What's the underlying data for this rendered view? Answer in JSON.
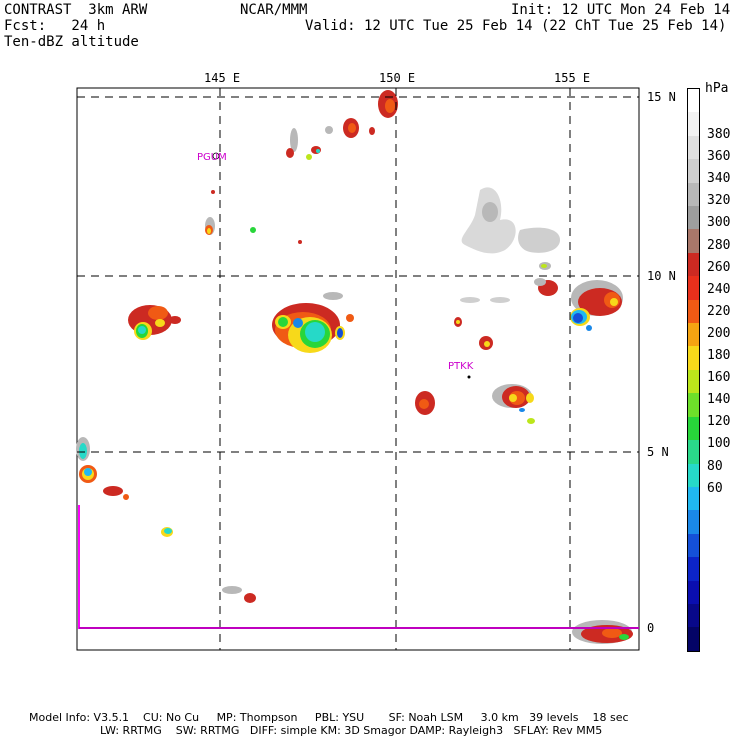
{
  "header": {
    "model": "CONTRAST  3km ARW",
    "org": "NCAR/MMM",
    "init": "Init: 12 UTC Mon 24 Feb 14",
    "fcst": "Fcst:   24 h",
    "valid": "Valid: 12 UTC Tue 25 Feb 14 (22 ChT Tue 25 Feb 14)",
    "field": "Ten-dBZ altitude"
  },
  "map": {
    "lon_labels": [
      "145 E",
      "150 E",
      "155 E"
    ],
    "lat_labels": [
      "15 N",
      "10 N",
      "5 N",
      "0"
    ],
    "stations": [
      "PGUM",
      "PTKK"
    ]
  },
  "colorbar": {
    "unit": "hPa",
    "labels": [
      "380",
      "360",
      "340",
      "320",
      "300",
      "280",
      "260",
      "240",
      "220",
      "200",
      "180",
      "160",
      "140",
      "120",
      "100",
      "80",
      "60"
    ],
    "colors": [
      "#ffffff",
      "#f2f2f2",
      "#e0e0e0",
      "#cfcfcf",
      "#b8b8b8",
      "#9e9e9e",
      "#a8776a",
      "#cc2a22",
      "#e9301c",
      "#f05a14",
      "#f5a412",
      "#f7d91a",
      "#bce61b",
      "#6ee02a",
      "#28d63a",
      "#2ad88a",
      "#26d9c8",
      "#20b8f0",
      "#1a88e8",
      "#1450d8",
      "#0c24c8",
      "#0a0eb0",
      "#08088a",
      "#040466"
    ]
  },
  "footer": {
    "line1": "Model Info: V3.5.1    CU: No Cu     MP: Thompson     PBL: YSU       SF: Noah LSM     3.0 km   39 levels    18 sec",
    "line2": "LW: RRTMG    SW: RRTMG   DIFF: simple KM: 3D Smagor DAMP: Rayleigh3   SFLAY: Rev MM5"
  }
}
